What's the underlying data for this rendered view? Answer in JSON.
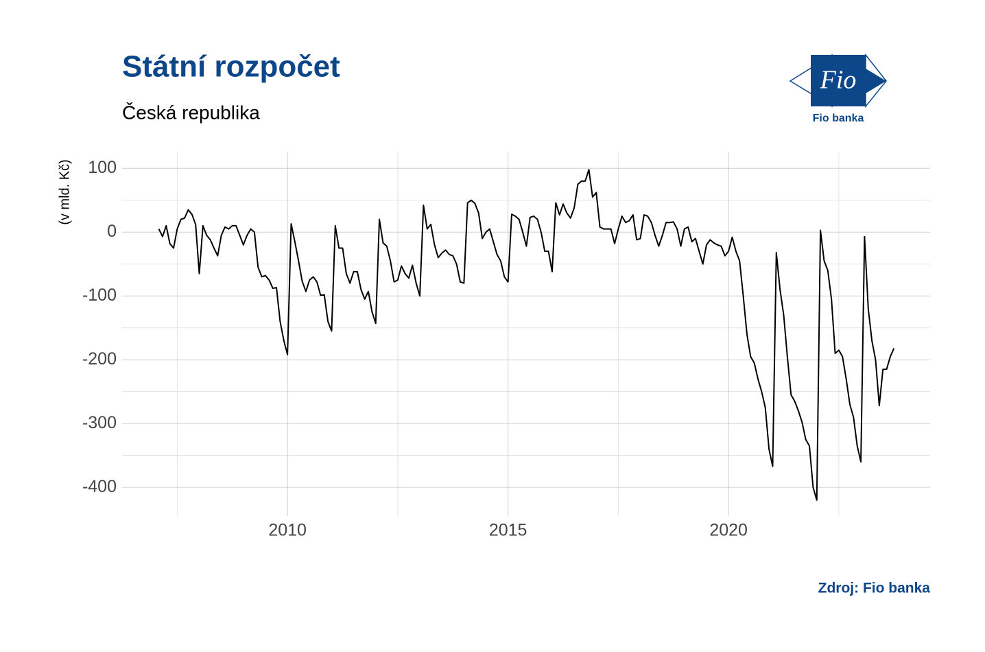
{
  "chart_data": {
    "type": "line",
    "title": "Státní rozpočet",
    "subtitle": "Česká republika",
    "y_label": "(v mld. Kč)",
    "source": "Zdroj: Fio banka",
    "logo_text": "Fio",
    "logo_caption": "Fio banka",
    "title_color": "#0d4689",
    "grid": true,
    "minor_grid": true,
    "xlim": [
      2006.25,
      2024.57
    ],
    "xticks": [
      2010,
      2015,
      2020
    ],
    "ylim": [
      -445,
      125
    ],
    "yticks": [
      100,
      0,
      -100,
      -200,
      -300,
      -400
    ],
    "x": [
      2007.083,
      2007.167,
      2007.25,
      2007.333,
      2007.417,
      2007.5,
      2007.583,
      2007.667,
      2007.75,
      2007.833,
      2007.917,
      2008,
      2008.083,
      2008.167,
      2008.25,
      2008.333,
      2008.417,
      2008.5,
      2008.583,
      2008.667,
      2008.75,
      2008.833,
      2008.917,
      2009,
      2009.083,
      2009.167,
      2009.25,
      2009.333,
      2009.417,
      2009.5,
      2009.583,
      2009.667,
      2009.75,
      2009.833,
      2009.917,
      2010,
      2010.083,
      2010.167,
      2010.25,
      2010.333,
      2010.417,
      2010.5,
      2010.583,
      2010.667,
      2010.75,
      2010.833,
      2010.917,
      2011,
      2011.083,
      2011.167,
      2011.25,
      2011.333,
      2011.417,
      2011.5,
      2011.583,
      2011.667,
      2011.75,
      2011.833,
      2011.917,
      2012,
      2012.083,
      2012.167,
      2012.25,
      2012.333,
      2012.417,
      2012.5,
      2012.583,
      2012.667,
      2012.75,
      2012.833,
      2012.917,
      2013,
      2013.083,
      2013.167,
      2013.25,
      2013.333,
      2013.417,
      2013.5,
      2013.583,
      2013.667,
      2013.75,
      2013.833,
      2013.917,
      2014,
      2014.083,
      2014.167,
      2014.25,
      2014.333,
      2014.417,
      2014.5,
      2014.583,
      2014.667,
      2014.75,
      2014.833,
      2014.917,
      2015,
      2015.083,
      2015.167,
      2015.25,
      2015.333,
      2015.417,
      2015.5,
      2015.583,
      2015.667,
      2015.75,
      2015.833,
      2015.917,
      2016,
      2016.083,
      2016.167,
      2016.25,
      2016.333,
      2016.417,
      2016.5,
      2016.583,
      2016.667,
      2016.75,
      2016.833,
      2016.917,
      2017,
      2017.083,
      2017.167,
      2017.25,
      2017.333,
      2017.417,
      2017.5,
      2017.583,
      2017.667,
      2017.75,
      2017.833,
      2017.917,
      2018,
      2018.083,
      2018.167,
      2018.25,
      2018.333,
      2018.417,
      2018.5,
      2018.583,
      2018.667,
      2018.75,
      2018.833,
      2018.917,
      2019,
      2019.083,
      2019.167,
      2019.25,
      2019.333,
      2019.417,
      2019.5,
      2019.583,
      2019.667,
      2019.75,
      2019.833,
      2019.917,
      2020,
      2020.083,
      2020.167,
      2020.25,
      2020.333,
      2020.417,
      2020.5,
      2020.583,
      2020.667,
      2020.75,
      2020.833,
      2020.917,
      2021,
      2021.083,
      2021.167,
      2021.25,
      2021.333,
      2021.417,
      2021.5,
      2021.583,
      2021.667,
      2021.75,
      2021.833,
      2021.917,
      2022,
      2022.083,
      2022.167,
      2022.25,
      2022.333,
      2022.417,
      2022.5,
      2022.583,
      2022.667,
      2022.75,
      2022.833,
      2022.917,
      2023,
      2023.083,
      2023.167,
      2023.25,
      2023.333,
      2023.417,
      2023.5,
      2023.583,
      2023.667,
      2023.75
    ],
    "series": [
      {
        "color": "#000000",
        "values": [
          5,
          -7,
          10,
          -18,
          -25,
          5,
          20,
          22,
          35,
          28,
          12,
          -65,
          10,
          -5,
          -12,
          -25,
          -37,
          -5,
          8,
          5,
          10,
          10,
          -5,
          -20,
          -5,
          5,
          0,
          -55,
          -70,
          -68,
          -75,
          -88,
          -87,
          -140,
          -170,
          -192,
          13,
          -15,
          -45,
          -77,
          -93,
          -75,
          -70,
          -78,
          -99,
          -98,
          -140,
          -155,
          10,
          -25,
          -25,
          -65,
          -80,
          -62,
          -62,
          -90,
          -105,
          -93,
          -125,
          -143,
          20,
          -17,
          -22,
          -45,
          -78,
          -75,
          -53,
          -65,
          -72,
          -52,
          -80,
          -100,
          42,
          5,
          12,
          -20,
          -40,
          -33,
          -28,
          -35,
          -37,
          -50,
          -78,
          -80,
          46,
          50,
          45,
          30,
          -10,
          0,
          5,
          -15,
          -35,
          -45,
          -70,
          -78,
          28,
          25,
          20,
          0,
          -22,
          23,
          25,
          20,
          0,
          -30,
          -30,
          -62,
          46,
          27,
          44,
          30,
          22,
          38,
          75,
          80,
          80,
          98,
          55,
          62,
          8,
          5,
          5,
          5,
          -18,
          5,
          25,
          15,
          18,
          27,
          -12,
          -10,
          27,
          25,
          15,
          -5,
          -22,
          -5,
          15,
          15,
          16,
          5,
          -22,
          5,
          8,
          -15,
          -10,
          -30,
          -50,
          -20,
          -12,
          -17,
          -20,
          -22,
          -37,
          -30,
          -8,
          -30,
          -45,
          -100,
          -160,
          -195,
          -205,
          -230,
          -250,
          -275,
          -340,
          -367,
          -32,
          -90,
          -130,
          -195,
          -255,
          -265,
          -280,
          -298,
          -325,
          -335,
          -400,
          -420,
          3,
          -45,
          -60,
          -105,
          -190,
          -185,
          -195,
          -230,
          -270,
          -290,
          -335,
          -360,
          -7,
          -120,
          -170,
          -200,
          -272,
          -215,
          -215,
          -195,
          -182
        ]
      }
    ]
  }
}
